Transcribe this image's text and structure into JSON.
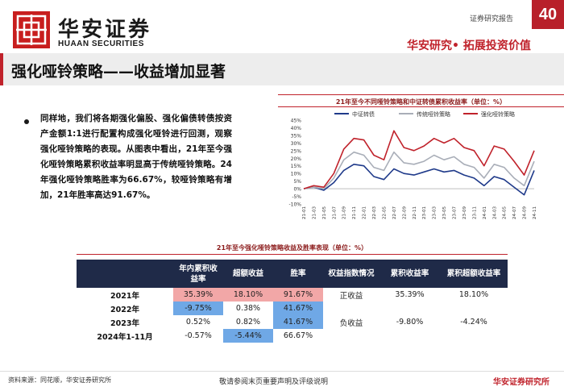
{
  "header": {
    "logo_cn": "华安证券",
    "logo_en": "HUAAN SECURITIES",
    "report_type": "证券研究报告",
    "page_number": "40",
    "slogan": "华安研究• 拓展投资价值",
    "brand_color": "#c0222b"
  },
  "title": "强化哑铃策略——收益增加显著",
  "body_text": "同样地，我们将各期强化偏股、强化偏债转债按资产金额1:1进行配置构成强化哑铃进行回测，观察强化哑铃策略的表现。从图表中看出，21年至今强化哑铃策略累积收益率明显高于传统哑铃策略。24年强化哑铃策略胜率为66.67%，较哑铃策略有增加，21年胜率高达91.67%。",
  "chart_title": "21年至今不同哑铃策略和中证转债累积收益率（单位：%）",
  "chart_data": {
    "type": "line",
    "title": "21年至今不同哑铃策略和中证转债累积收益率（单位：%）",
    "x": [
      "21-01",
      "21-03",
      "21-05",
      "21-07",
      "21-09",
      "21-11",
      "22-01",
      "22-03",
      "22-05",
      "22-07",
      "22-09",
      "22-11",
      "23-01",
      "23-03",
      "23-05",
      "23-07",
      "23-09",
      "23-11",
      "24-01",
      "24-03",
      "24-05",
      "24-07",
      "24-09",
      "24-11"
    ],
    "ylim": [
      -10,
      45
    ],
    "yticks": [
      "45%",
      "40%",
      "35%",
      "30%",
      "25%",
      "20%",
      "15%",
      "10%",
      "5%",
      "0%",
      "-5%",
      "-10%"
    ],
    "legend_position": "top",
    "series": [
      {
        "name": "中证转债",
        "color": "#1f3a8a",
        "values": [
          0,
          1,
          -1,
          4,
          12,
          16,
          15,
          8,
          6,
          13,
          10,
          9,
          11,
          13,
          11,
          12,
          9,
          7,
          2,
          8,
          6,
          1,
          -4,
          12
        ]
      },
      {
        "name": "传统哑铃策略",
        "color": "#a9aeb8",
        "values": [
          0,
          1,
          0,
          7,
          19,
          24,
          22,
          14,
          12,
          24,
          17,
          16,
          18,
          22,
          19,
          21,
          16,
          14,
          7,
          16,
          14,
          7,
          2,
          18
        ]
      },
      {
        "name": "强化哑铃策略",
        "color": "#c0222b",
        "values": [
          0,
          2,
          1,
          10,
          26,
          33,
          32,
          22,
          19,
          38,
          27,
          25,
          28,
          33,
          30,
          33,
          27,
          25,
          15,
          28,
          26,
          18,
          9,
          25
        ]
      }
    ]
  },
  "table": {
    "title": "21年至今强化哑铃策略收益及胜率表现（单位：%）",
    "headers": [
      "",
      "年内累积收益率",
      "超额收益",
      "胜率",
      "权益指数情况",
      "累积收益率",
      "累积超额收益率"
    ],
    "rows": [
      {
        "label": "2021年",
        "cum": "35.39%",
        "excess": "18.10%",
        "win": "91.67%"
      },
      {
        "label": "2022年",
        "cum": "-9.75%",
        "excess": "0.38%",
        "win": "41.67%"
      },
      {
        "label": "2023年",
        "cum": "0.52%",
        "excess": "0.82%",
        "win": "41.67%"
      },
      {
        "label": "2024年1-11月",
        "cum": "-0.57%",
        "excess": "-5.44%",
        "win": "66.67%"
      }
    ],
    "equity_groups": [
      {
        "label": "正收益",
        "cum": "35.39%",
        "excess": "18.10%"
      },
      {
        "label": "负收益",
        "cum": "-9.80%",
        "excess": "-4.24%"
      }
    ],
    "positive_color": "#f2a7a7",
    "negative_color": "#6fa8e6",
    "header_color": "#1f2a48"
  },
  "footer": {
    "source": "资料来源：同花顺，华安证券研究所",
    "disclaimer": "敬请参阅末页重要声明及评级说明",
    "brand": "华安证券研究所"
  }
}
